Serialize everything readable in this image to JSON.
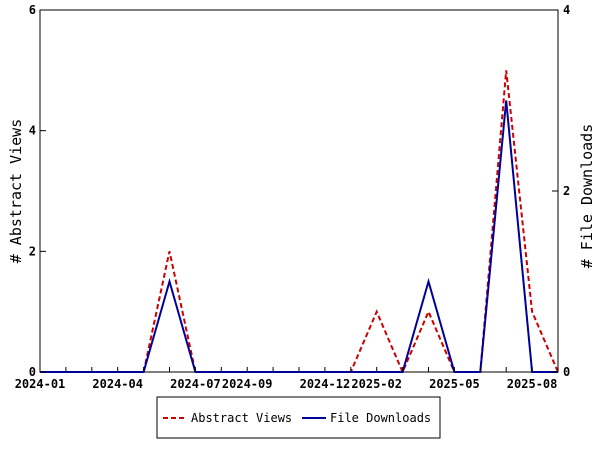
{
  "chart_data": {
    "type": "line",
    "x_labels": [
      "2024-01",
      "2024-02",
      "2024-03",
      "2024-04",
      "2024-05",
      "2024-06",
      "2024-07",
      "2024-08",
      "2024-09",
      "2024-10",
      "2024-11",
      "2024-12",
      "2025-01",
      "2025-02",
      "2025-03",
      "2025-04",
      "2025-05",
      "2025-06",
      "2025-07",
      "2025-08",
      "2025-09"
    ],
    "x_ticks": [
      "2024-01",
      "2024-04",
      "2024-07",
      "2024-09",
      "2024-12",
      "2025-02",
      "2025-05",
      "2025-08"
    ],
    "y_left": {
      "label": "# Abstract Views",
      "ticks": [
        0,
        2,
        4,
        6
      ],
      "lim": [
        0,
        6
      ]
    },
    "y_right": {
      "label": "# File Downloads",
      "ticks": [
        0,
        2,
        4
      ],
      "lim": [
        0,
        4
      ]
    },
    "series": [
      {
        "name": "Abstract Views",
        "axis": "left",
        "color": "#cc0000",
        "dash": "dashed",
        "values": [
          0,
          0,
          0,
          0,
          0,
          2,
          0,
          0,
          0,
          0,
          0,
          0,
          0,
          1,
          0,
          1,
          0,
          0,
          5,
          1,
          0
        ]
      },
      {
        "name": "File Downloads",
        "axis": "right",
        "color": "#000099",
        "dash": "solid",
        "values": [
          0,
          0,
          0,
          0,
          0,
          1,
          0,
          0,
          0,
          0,
          0,
          0,
          0,
          0,
          0,
          1,
          0,
          0,
          3,
          0,
          0
        ]
      }
    ],
    "legend_position": "bottom"
  }
}
